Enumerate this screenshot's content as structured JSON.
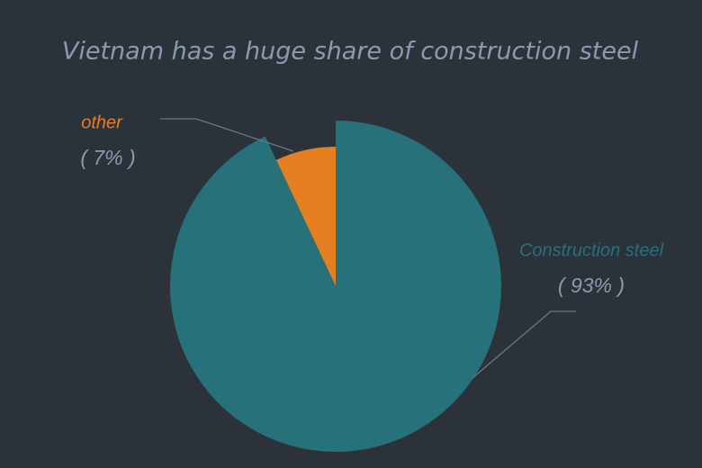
{
  "chart_data": {
    "type": "pie",
    "title": "Vietnam has a huge share of construction steel",
    "categories": [
      "Construction steel",
      "other"
    ],
    "values": [
      93,
      7
    ],
    "value_labels": [
      "( 93% )",
      "( 7% )"
    ],
    "colors": [
      "#27717b",
      "#e67e22"
    ]
  }
}
